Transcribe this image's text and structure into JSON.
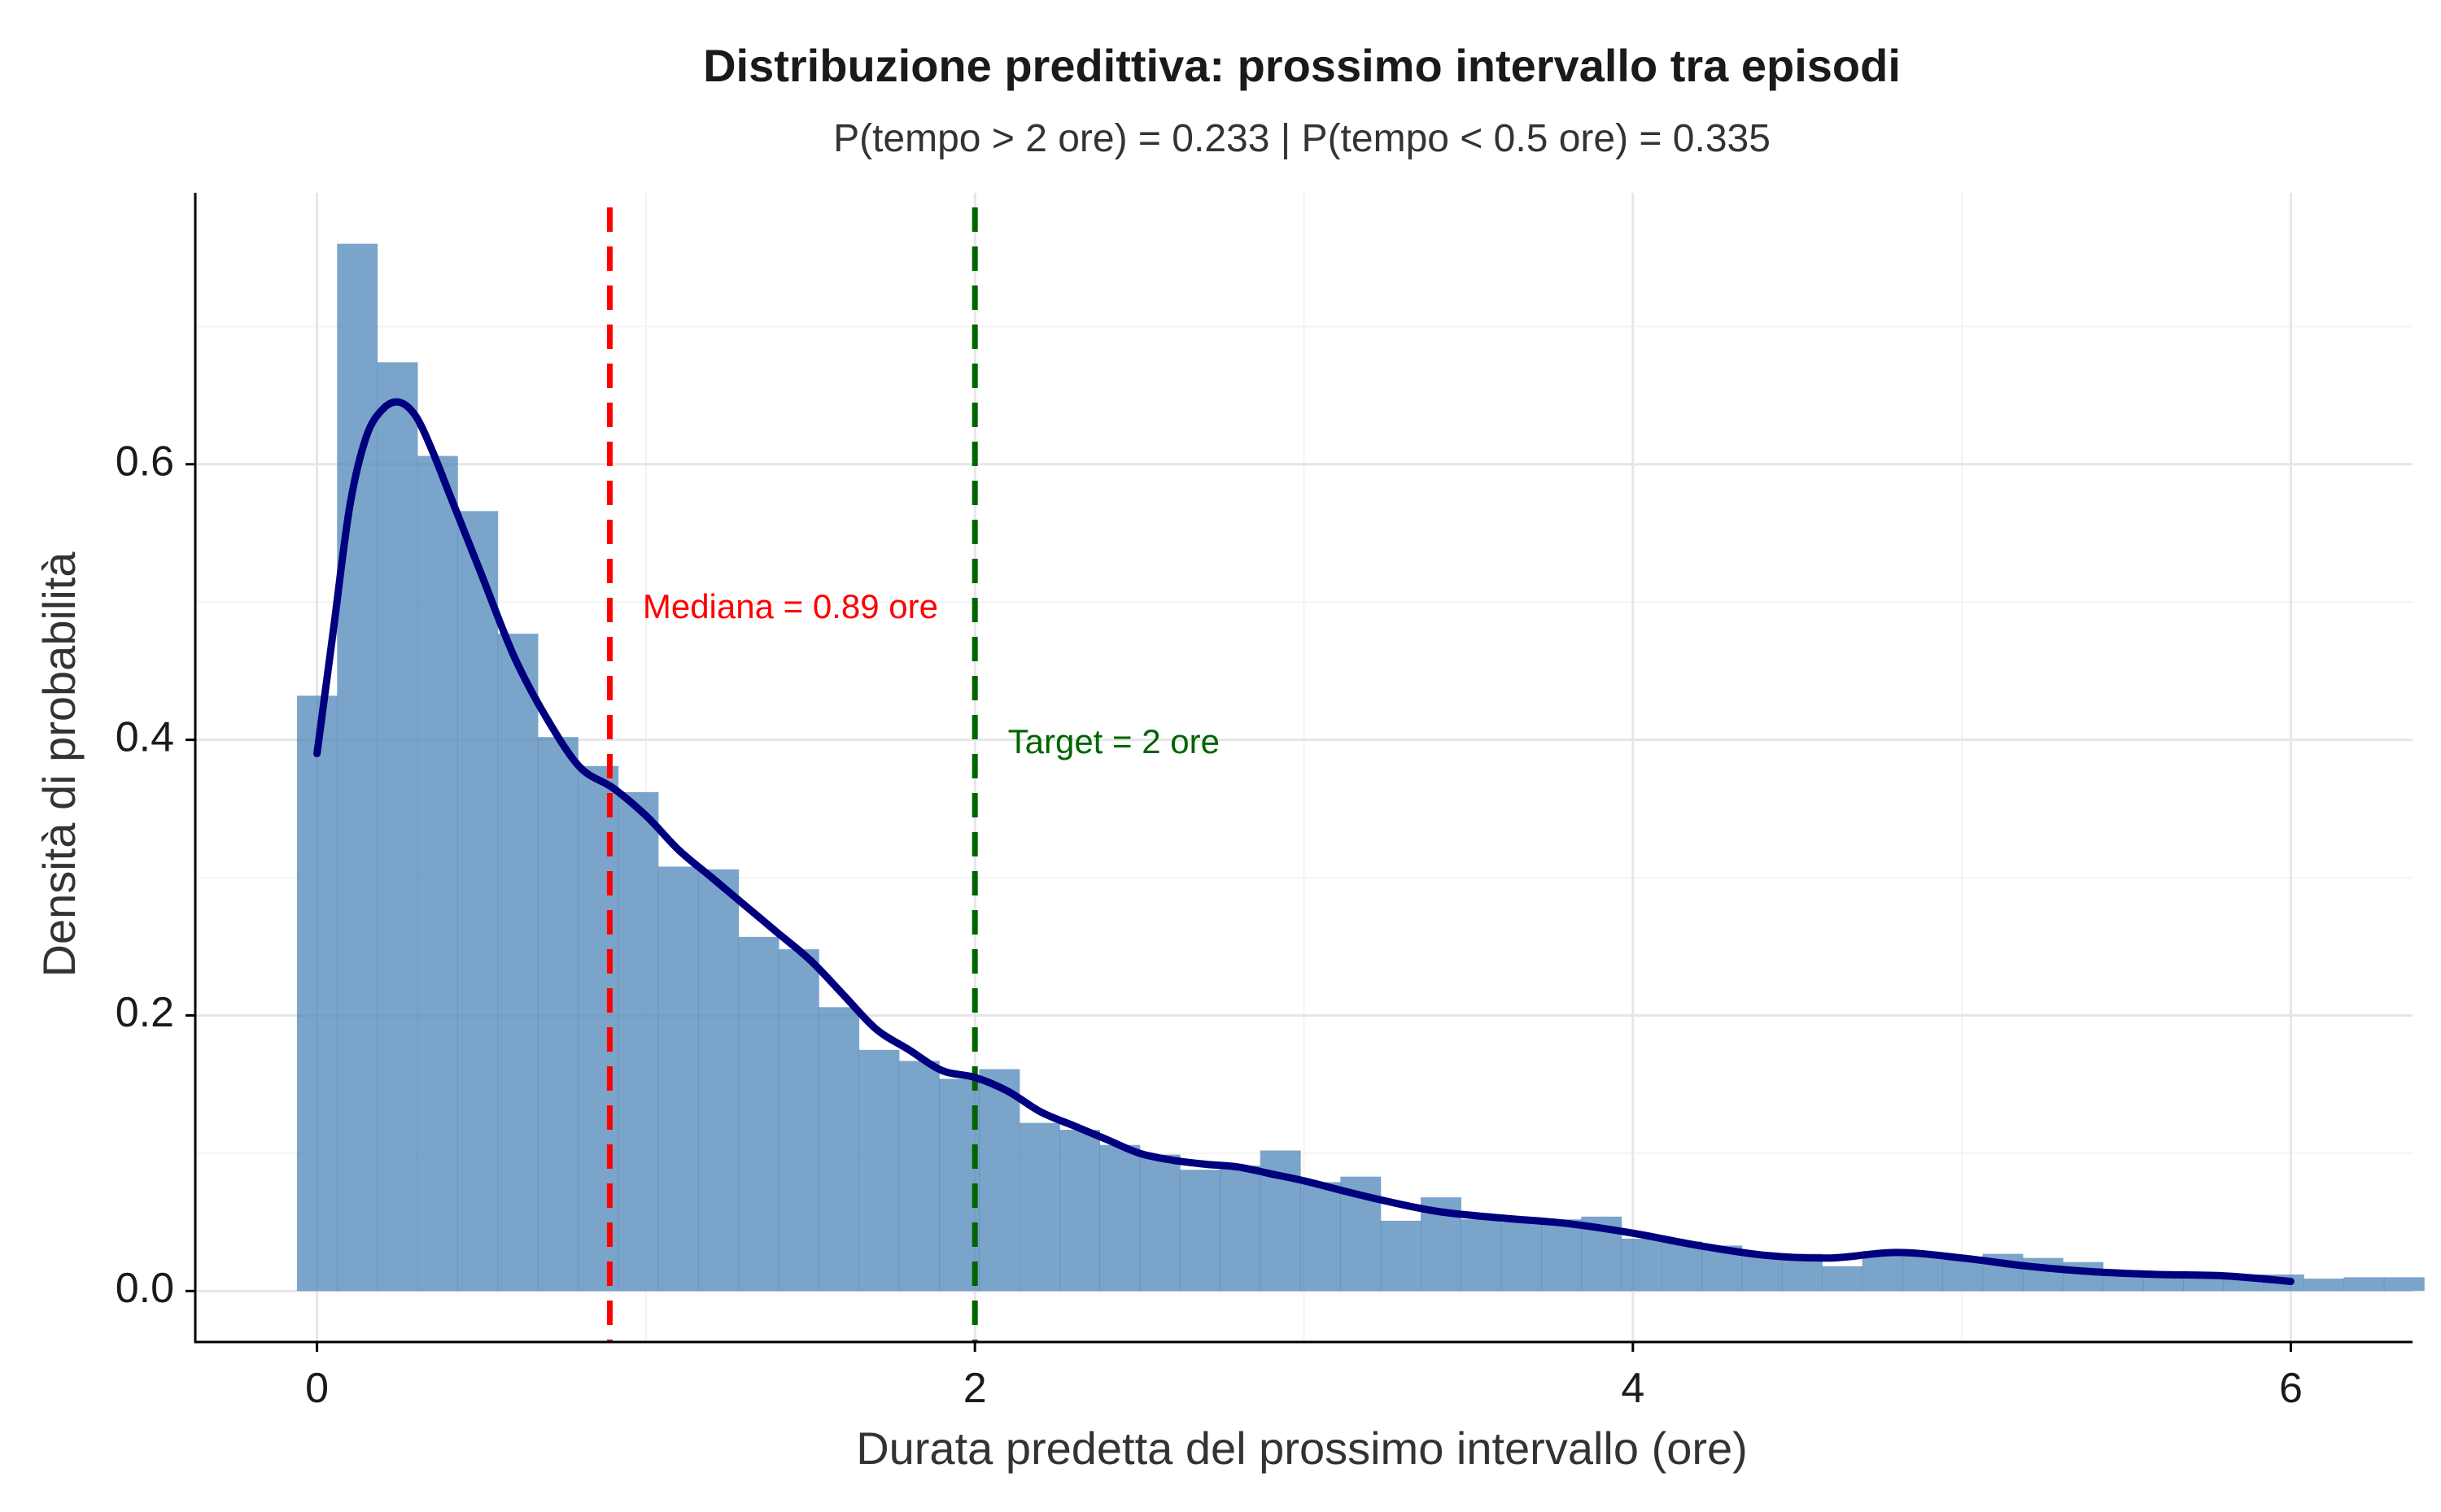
{
  "chart_data": {
    "type": "histogram",
    "title": "Distribuzione predittiva: prossimo intervallo tra episodi",
    "subtitle": "P(tempo > 2 ore) = 0.233 | P(tempo < 0.5 ore) = 0.335",
    "xlabel": "Durata predetta del prossimo intervallo (ore)",
    "ylabel": "Densità di probabilità",
    "xlim": [
      -0.37,
      6.37
    ],
    "ylim": [
      -0.037,
      0.797
    ],
    "x_ticks": [
      0,
      2,
      4,
      6
    ],
    "x_tick_labels": [
      "0",
      "2",
      "4",
      "6"
    ],
    "y_ticks": [
      0.0,
      0.2,
      0.4,
      0.6
    ],
    "y_tick_labels": [
      "0.0",
      "0.2",
      "0.4",
      "0.6"
    ],
    "grid": true,
    "colors": {
      "bars": "#4f86b8",
      "density": "#00007f",
      "median_line": "#ff0000",
      "target_line": "#006400",
      "grid_major": "#e6e6e6",
      "grid_minor": "#f3f3f3",
      "axis": "#000000"
    },
    "histogram": {
      "bin_width": 0.122,
      "start": -0.061,
      "values": [
        0.432,
        0.76,
        0.674,
        0.606,
        0.566,
        0.477,
        0.402,
        0.381,
        0.362,
        0.308,
        0.306,
        0.257,
        0.248,
        0.206,
        0.175,
        0.167,
        0.154,
        0.161,
        0.122,
        0.117,
        0.106,
        0.099,
        0.088,
        0.091,
        0.102,
        0.079,
        0.083,
        0.051,
        0.068,
        0.052,
        0.05,
        0.052,
        0.054,
        0.038,
        0.036,
        0.033,
        0.027,
        0.027,
        0.018,
        0.029,
        0.026,
        0.024,
        0.027,
        0.024,
        0.021,
        0.015,
        0.014,
        0.013,
        0.012,
        0.012,
        0.009,
        0.01,
        0.01
      ]
    },
    "density": {
      "name": "density",
      "x": [
        0.0,
        0.05,
        0.1,
        0.15,
        0.2,
        0.25,
        0.3,
        0.35,
        0.4,
        0.45,
        0.5,
        0.6,
        0.7,
        0.8,
        0.9,
        1.0,
        1.1,
        1.2,
        1.3,
        1.4,
        1.5,
        1.6,
        1.7,
        1.8,
        1.9,
        2.0,
        2.1,
        2.2,
        2.3,
        2.4,
        2.5,
        2.6,
        2.7,
        2.8,
        2.9,
        3.0,
        3.2,
        3.4,
        3.6,
        3.8,
        4.0,
        4.2,
        4.4,
        4.6,
        4.8,
        5.0,
        5.2,
        5.4,
        5.6,
        5.8,
        6.0
      ],
      "y": [
        0.39,
        0.48,
        0.57,
        0.62,
        0.64,
        0.645,
        0.635,
        0.61,
        0.58,
        0.55,
        0.52,
        0.46,
        0.415,
        0.38,
        0.365,
        0.345,
        0.32,
        0.3,
        0.28,
        0.26,
        0.24,
        0.215,
        0.19,
        0.175,
        0.16,
        0.155,
        0.145,
        0.13,
        0.12,
        0.11,
        0.1,
        0.095,
        0.092,
        0.09,
        0.085,
        0.08,
        0.068,
        0.058,
        0.053,
        0.049,
        0.042,
        0.033,
        0.026,
        0.024,
        0.028,
        0.024,
        0.018,
        0.014,
        0.012,
        0.011,
        0.007
      ]
    },
    "reference_lines": [
      {
        "x": 0.89,
        "label": "Mediana = 0.89 ore",
        "label_x": 0.99,
        "label_y": 0.495,
        "color": "#ff0000"
      },
      {
        "x": 2.0,
        "label": "Target = 2 ore",
        "label_x": 2.1,
        "label_y": 0.397,
        "color": "#006400"
      }
    ]
  }
}
